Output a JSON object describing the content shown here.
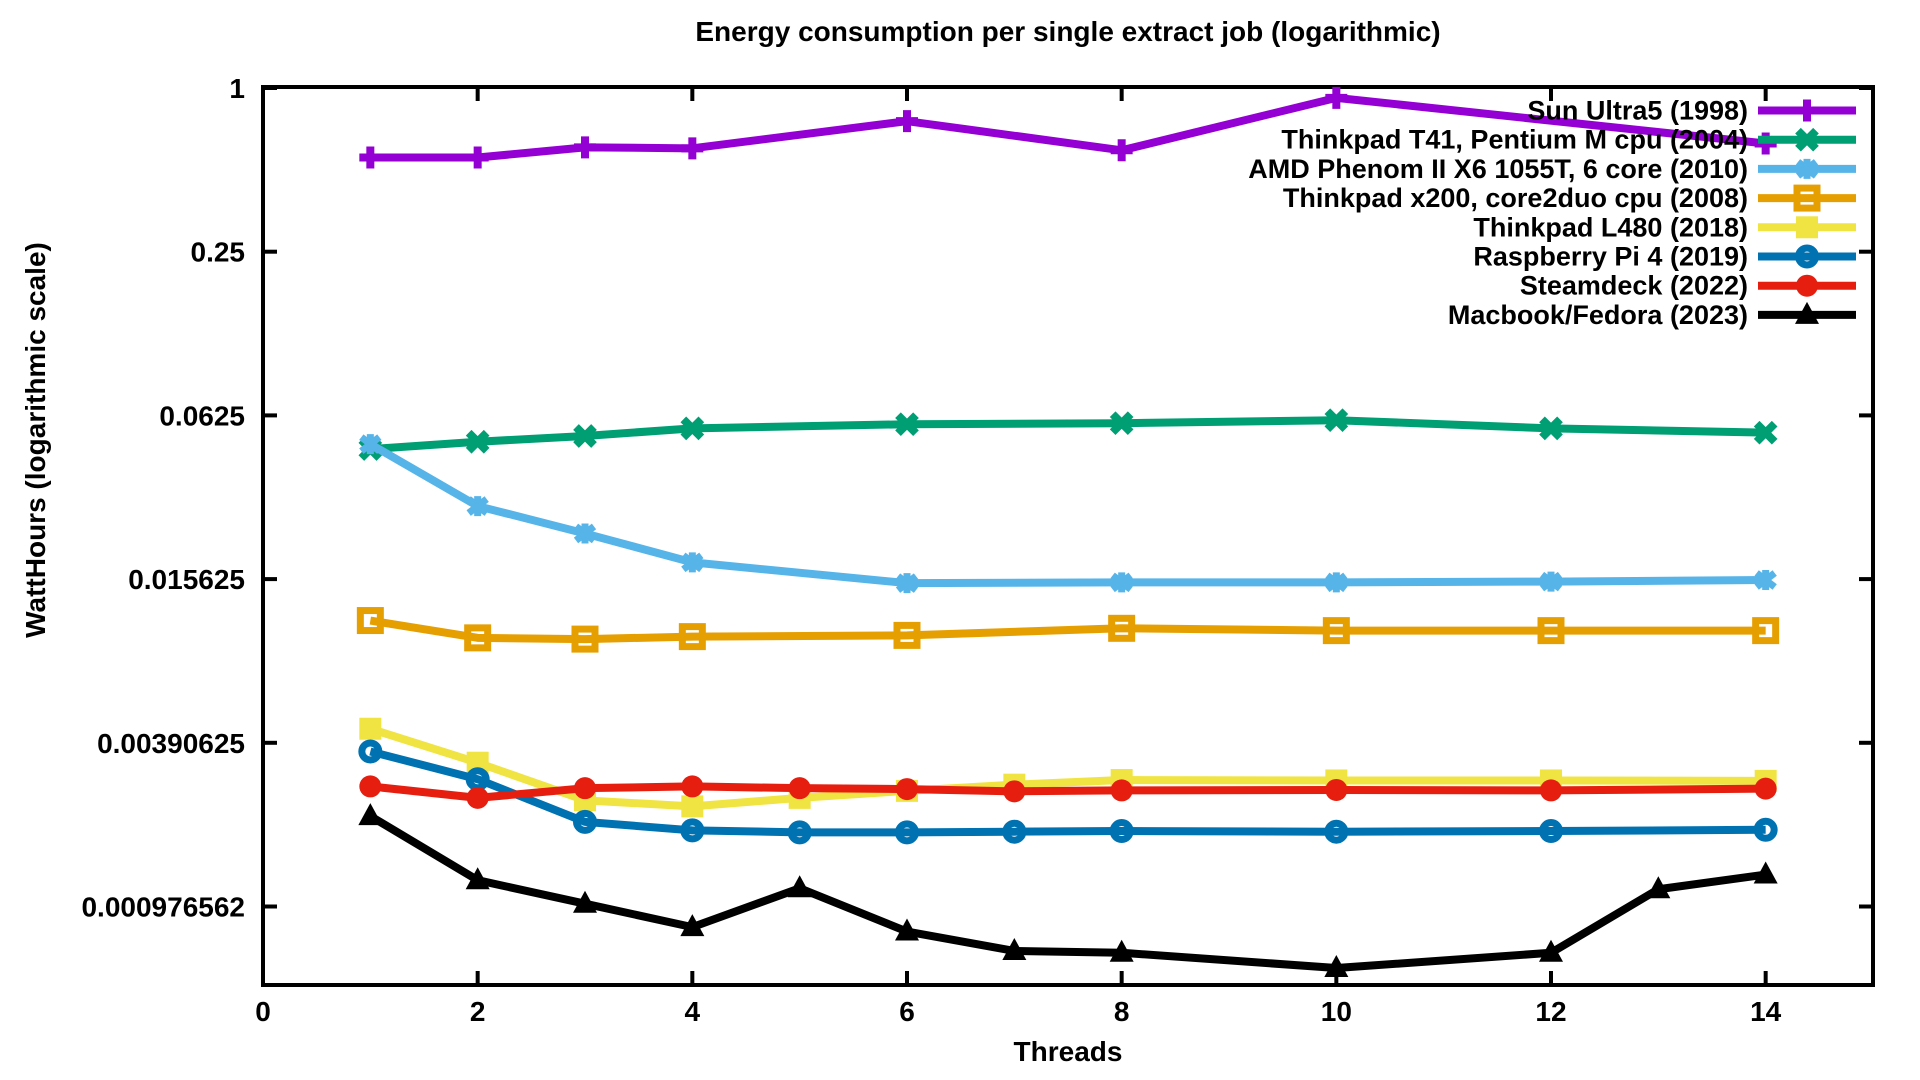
{
  "chart_data": {
    "type": "line",
    "title": "Energy consumption per single extract job (logarithmic)",
    "xlabel": "Threads",
    "ylabel": "WattHours (logarithmic scale)",
    "background_color": "#ffffff",
    "axis_color": "#000000",
    "grid": false,
    "legend_position": "top-right-inside",
    "x_axis": {
      "min": 0,
      "max": 15,
      "tick_labels": [
        "0",
        "2",
        "4",
        "6",
        "8",
        "10",
        "12",
        "14"
      ],
      "tick_values": [
        0,
        2,
        4,
        6,
        8,
        10,
        12,
        14
      ]
    },
    "y_axis": {
      "scale": "log4",
      "min": 0.0005,
      "max": 1,
      "tick_labels": [
        "1",
        "0.25",
        "0.0625",
        "0.015625",
        "0.00390625",
        "0.000976562"
      ],
      "tick_values": [
        1,
        0.25,
        0.0625,
        0.015625,
        0.00390625,
        0.000976562
      ]
    },
    "series": [
      {
        "name": "Sun Ultra5 (1998)",
        "color": "#9400d3",
        "marker": "plus",
        "x": [
          1,
          2,
          3,
          4,
          6,
          8,
          10,
          14
        ],
        "values": [
          0.555,
          0.555,
          0.605,
          0.6,
          0.755,
          0.59,
          0.92,
          0.625
        ]
      },
      {
        "name": "Thinkpad T41, Pentium M cpu (2004)",
        "color": "#009e73",
        "marker": "cross",
        "x": [
          1,
          2,
          3,
          4,
          6,
          8,
          10,
          12,
          14
        ],
        "values": [
          0.047,
          0.05,
          0.0525,
          0.056,
          0.058,
          0.0585,
          0.06,
          0.056,
          0.054
        ]
      },
      {
        "name": "AMD Phenom II X6 1055T, 6 core (2010)",
        "color": "#56b4e9",
        "marker": "asterisk",
        "x": [
          1,
          2,
          3,
          4,
          6,
          8,
          10,
          12,
          14
        ],
        "values": [
          0.049,
          0.029,
          0.023,
          0.018,
          0.0151,
          0.0152,
          0.0152,
          0.0153,
          0.0155
        ]
      },
      {
        "name": "Thinkpad x200, core2duo cpu (2008)",
        "color": "#e69f00",
        "marker": "square-open",
        "x": [
          1,
          2,
          3,
          4,
          6,
          8,
          10,
          12,
          14
        ],
        "values": [
          0.011,
          0.0095,
          0.0094,
          0.0096,
          0.0097,
          0.0103,
          0.0101,
          0.0101,
          0.0101
        ]
      },
      {
        "name": "Thinkpad L480 (2018)",
        "color": "#f0e442",
        "marker": "square-filled",
        "x": [
          1,
          2,
          3,
          4,
          5,
          6,
          7,
          8,
          10,
          12,
          14
        ],
        "values": [
          0.0044,
          0.0033,
          0.0024,
          0.00228,
          0.00245,
          0.0026,
          0.00274,
          0.00285,
          0.00284,
          0.00284,
          0.00283
        ]
      },
      {
        "name": "Raspberry Pi 4 (2019)",
        "color": "#0072b2",
        "marker": "circle-open",
        "x": [
          1,
          2,
          3,
          4,
          5,
          6,
          7,
          8,
          10,
          12,
          14
        ],
        "values": [
          0.00363,
          0.00287,
          0.002,
          0.00186,
          0.00183,
          0.00183,
          0.00184,
          0.00185,
          0.00184,
          0.00185,
          0.00187
        ]
      },
      {
        "name": "Steamdeck (2022)",
        "color": "#e51e10",
        "marker": "circle-filled",
        "x": [
          1,
          2,
          3,
          4,
          5,
          6,
          7,
          8,
          10,
          12,
          14
        ],
        "values": [
          0.0027,
          0.00245,
          0.00266,
          0.0027,
          0.00266,
          0.00264,
          0.00259,
          0.00261,
          0.00262,
          0.00261,
          0.00265
        ]
      },
      {
        "name": "Macbook/Fedora (2023)",
        "color": "#000000",
        "marker": "triangle-filled",
        "x": [
          1,
          2,
          3,
          4,
          5,
          6,
          7,
          8,
          10,
          12,
          13,
          14
        ],
        "values": [
          0.0021,
          0.00122,
          0.001,
          0.00082,
          0.00114,
          0.00079,
          0.00067,
          0.00066,
          0.00058,
          0.00066,
          0.00113,
          0.00128
        ]
      }
    ]
  }
}
